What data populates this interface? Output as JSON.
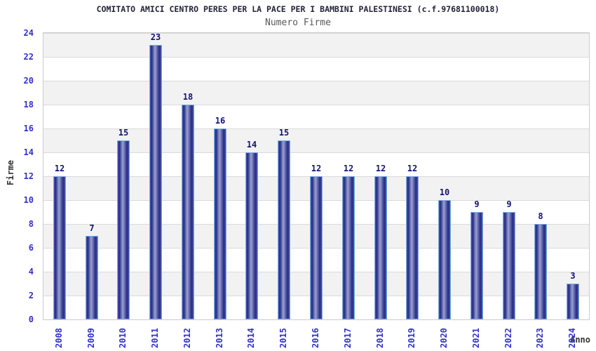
{
  "header": {
    "title": "COMITATO AMICI CENTRO PERES PER LA PACE PER I BAMBINI PALESTINESI (c.f.97681100018)",
    "subtitle": "Numero Firme"
  },
  "chart_data": {
    "type": "bar",
    "title": "Numero Firme",
    "categories": [
      "2008",
      "2009",
      "2010",
      "2011",
      "2012",
      "2013",
      "2014",
      "2015",
      "2016",
      "2017",
      "2018",
      "2019",
      "2020",
      "2021",
      "2022",
      "2023",
      "2024"
    ],
    "values": [
      12,
      7,
      15,
      23,
      18,
      16,
      14,
      15,
      12,
      12,
      12,
      12,
      10,
      9,
      9,
      8,
      3
    ],
    "xlabel": "Anno",
    "ylabel": "Firme",
    "ylim": [
      0,
      24
    ],
    "ytick_step": 2,
    "grid": "horizontal gridlines every 2 units with alternating gray/white bands",
    "legend_position": "none",
    "colors": {
      "bar_dark": "#262b85",
      "bar_highlight": "#9aa2d2",
      "bar_edge": "#4a53ad",
      "bar_border": "#7aaede",
      "tick_label": "#3030cf",
      "value_label": "#14146e",
      "axis_title": "#333333",
      "title_text": "#23233a",
      "subtitle_text": "#595959",
      "band_gray": "#f2f2f2",
      "band_white": "#ffffff",
      "plot_border": "#cccccc"
    }
  }
}
